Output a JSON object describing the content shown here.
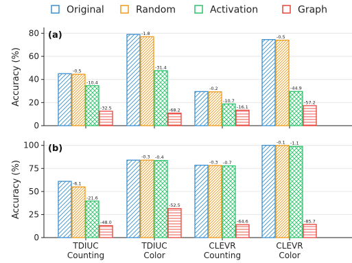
{
  "chart_data": {
    "type": "bar",
    "legend_position": "top",
    "categories": [
      "TDIUC\nCounting",
      "TDIUC\nColor",
      "CLEVR\nCounting",
      "CLEVR\nColor"
    ],
    "series_styles": [
      {
        "name": "Original",
        "color": "#3a8fd0",
        "hatch": "diag-light"
      },
      {
        "name": "Random",
        "color": "#ee9a1a",
        "hatch": "diag-dense"
      },
      {
        "name": "Activation",
        "color": "#2ec26c",
        "hatch": "cross"
      },
      {
        "name": "Graph",
        "color": "#e8433a",
        "hatch": "horizontal"
      }
    ],
    "panels": [
      {
        "label": "(a)",
        "ylabel": "Accuracy (%)",
        "ylim": [
          0,
          85
        ],
        "yticks": [
          0,
          20,
          40,
          60,
          80
        ],
        "series": [
          {
            "name": "Original",
            "values": [
              45,
              79,
              29.5,
              74.5
            ]
          },
          {
            "name": "Random",
            "values": [
              44.5,
              77,
              29.3,
              74
            ]
          },
          {
            "name": "Activation",
            "values": [
              34.6,
              47.6,
              18.8,
              29.6
            ]
          },
          {
            "name": "Graph",
            "values": [
              12.5,
              10.8,
              13.4,
              17.3
            ]
          }
        ],
        "annotations": [
          [
            "",
            "-0.5",
            "-10.4",
            "-32.5"
          ],
          [
            "",
            "-1.8",
            "-31.4",
            "-68.2"
          ],
          [
            "",
            "-0.2",
            "-10.7",
            "-16.1"
          ],
          [
            "",
            "-0.5",
            "-44.9",
            "-57.2"
          ]
        ]
      },
      {
        "label": "(b)",
        "ylabel": "Accuracy (%)",
        "ylim": [
          0,
          105
        ],
        "yticks": [
          0,
          25,
          50,
          75,
          100
        ],
        "series": [
          {
            "name": "Original",
            "values": [
              61,
              84,
              78.5,
              100
            ]
          },
          {
            "name": "Random",
            "values": [
              55,
              84,
              78.2,
              99.9
            ]
          },
          {
            "name": "Activation",
            "values": [
              39.6,
              83.6,
              77.8,
              98.9
            ]
          },
          {
            "name": "Graph",
            "values": [
              13,
              31.5,
              14,
              14.3
            ]
          }
        ],
        "annotations": [
          [
            "",
            "-6.1",
            "-21.6",
            "-48.0"
          ],
          [
            "",
            "-0.3",
            "-0.4",
            "-52.5"
          ],
          [
            "",
            "-0.3",
            "-0.7",
            "-64.6"
          ],
          [
            "",
            "-0.1",
            "-1.1",
            "-85.7"
          ]
        ]
      }
    ]
  }
}
